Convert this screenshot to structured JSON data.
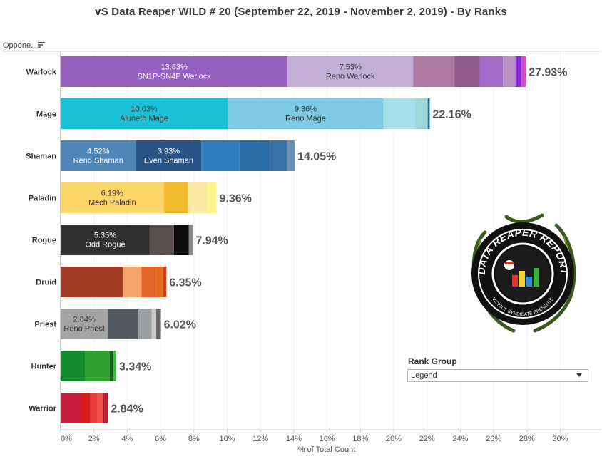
{
  "title": "vS Data Reaper WILD # 20 (September 22, 2019 - November 2, 2019) - By Ranks",
  "row_header": "Oppone..",
  "legend": {
    "title": "Rank Group",
    "selected": "Legend"
  },
  "logo": {
    "text_top": "DATA REAPER REPORT",
    "text_bottom": "VICIOUS SYNDICATE PRESENTS"
  },
  "chart_data": {
    "type": "bar",
    "orientation": "horizontal",
    "stacked": true,
    "xlabel": "% of Total Count",
    "xlim": [
      0,
      30
    ],
    "xticks": [
      "0%",
      "2%",
      "4%",
      "6%",
      "8%",
      "10%",
      "12%",
      "14%",
      "16%",
      "18%",
      "20%",
      "22%",
      "24%",
      "26%",
      "28%",
      "30%"
    ],
    "categories": [
      "Warlock",
      "Mage",
      "Shaman",
      "Paladin",
      "Rogue",
      "Druid",
      "Priest",
      "Hunter",
      "Warrior"
    ],
    "totals": [
      "27.93%",
      "22.16%",
      "14.05%",
      "9.36%",
      "7.94%",
      "6.35%",
      "6.02%",
      "3.34%",
      "2.84%"
    ],
    "rows": [
      {
        "segments": [
          {
            "value": 13.63,
            "color": "#9560c0",
            "label_pct": "13.63%",
            "label_name": "SN1P-SN4P Warlock",
            "text_color": "#ffffff"
          },
          {
            "value": 7.53,
            "color": "#c4aed6",
            "label_pct": "7.53%",
            "label_name": "Reno Warlock",
            "text_color": "#333333"
          },
          {
            "value": 2.5,
            "color": "#b07aa5"
          },
          {
            "value": 1.5,
            "color": "#915b8e"
          },
          {
            "value": 1.4,
            "color": "#a66ac8"
          },
          {
            "value": 0.75,
            "color": "#b98fc4"
          },
          {
            "value": 0.35,
            "color": "#8a22d8"
          },
          {
            "value": 0.27,
            "color": "#d350c0"
          }
        ]
      },
      {
        "segments": [
          {
            "value": 10.03,
            "color": "#1bbfd6",
            "label_pct": "10.03%",
            "label_name": "Aluneth Mage",
            "text_color": "#333333"
          },
          {
            "value": 9.36,
            "color": "#7ec9e3",
            "label_pct": "9.36%",
            "label_name": "Reno Mage",
            "text_color": "#333333"
          },
          {
            "value": 1.9,
            "color": "#a9dfe8"
          },
          {
            "value": 0.75,
            "color": "#9ed8da"
          },
          {
            "value": 0.12,
            "color": "#1e6fa0"
          }
        ]
      },
      {
        "segments": [
          {
            "value": 4.52,
            "color": "#4f86b8",
            "label_pct": "4.52%",
            "label_name": "Reno Shaman",
            "text_color": "#ffffff"
          },
          {
            "value": 3.93,
            "color": "#2a5485",
            "label_pct": "3.93%",
            "label_name": "Even Shaman",
            "text_color": "#ffffff"
          },
          {
            "value": 2.27,
            "color": "#2f7cba"
          },
          {
            "value": 1.84,
            "color": "#2a6eaa"
          },
          {
            "value": 1.05,
            "color": "#3573a8"
          },
          {
            "value": 0.44,
            "color": "#6b8fb5"
          }
        ]
      },
      {
        "segments": [
          {
            "value": 6.19,
            "color": "#fdd66a",
            "label_pct": "6.19%",
            "label_name": "Mech Paladin",
            "text_color": "#333333"
          },
          {
            "value": 1.44,
            "color": "#f0bb2c"
          },
          {
            "value": 1.15,
            "color": "#fae9a2"
          },
          {
            "value": 0.58,
            "color": "#fbf48e"
          }
        ]
      },
      {
        "segments": [
          {
            "value": 5.35,
            "color": "#303030",
            "label_pct": "5.35%",
            "label_name": "Odd Rogue",
            "text_color": "#ffffff"
          },
          {
            "value": 1.45,
            "color": "#5a4f4c"
          },
          {
            "value": 0.9,
            "color": "#0e0e0e"
          },
          {
            "value": 0.24,
            "color": "#888888"
          }
        ]
      },
      {
        "segments": [
          {
            "value": 3.73,
            "color": "#a23c26"
          },
          {
            "value": 1.13,
            "color": "#f4a66a"
          },
          {
            "value": 0.86,
            "color": "#e06628"
          },
          {
            "value": 0.43,
            "color": "#e46b1e"
          },
          {
            "value": 0.2,
            "color": "#d0401a"
          }
        ]
      },
      {
        "segments": [
          {
            "value": 2.84,
            "color": "#a3a3a3",
            "label_pct": "2.84%",
            "label_name": "Reno Priest",
            "text_color": "#333333"
          },
          {
            "value": 1.79,
            "color": "#53595f"
          },
          {
            "value": 0.84,
            "color": "#9aa0a2"
          },
          {
            "value": 0.27,
            "color": "#c9c9c9"
          },
          {
            "value": 0.28,
            "color": "#666666"
          }
        ]
      },
      {
        "segments": [
          {
            "value": 1.49,
            "color": "#158a2e"
          },
          {
            "value": 1.45,
            "color": "#30a030"
          },
          {
            "value": 0.22,
            "color": "#175f22"
          },
          {
            "value": 0.18,
            "color": "#46b64a"
          }
        ]
      },
      {
        "segments": [
          {
            "value": 1.22,
            "color": "#c81f3e"
          },
          {
            "value": 0.57,
            "color": "#d81b1b"
          },
          {
            "value": 0.42,
            "color": "#ea3b3b"
          },
          {
            "value": 0.33,
            "color": "#f0504a"
          },
          {
            "value": 0.3,
            "color": "#b92035"
          }
        ]
      }
    ]
  }
}
